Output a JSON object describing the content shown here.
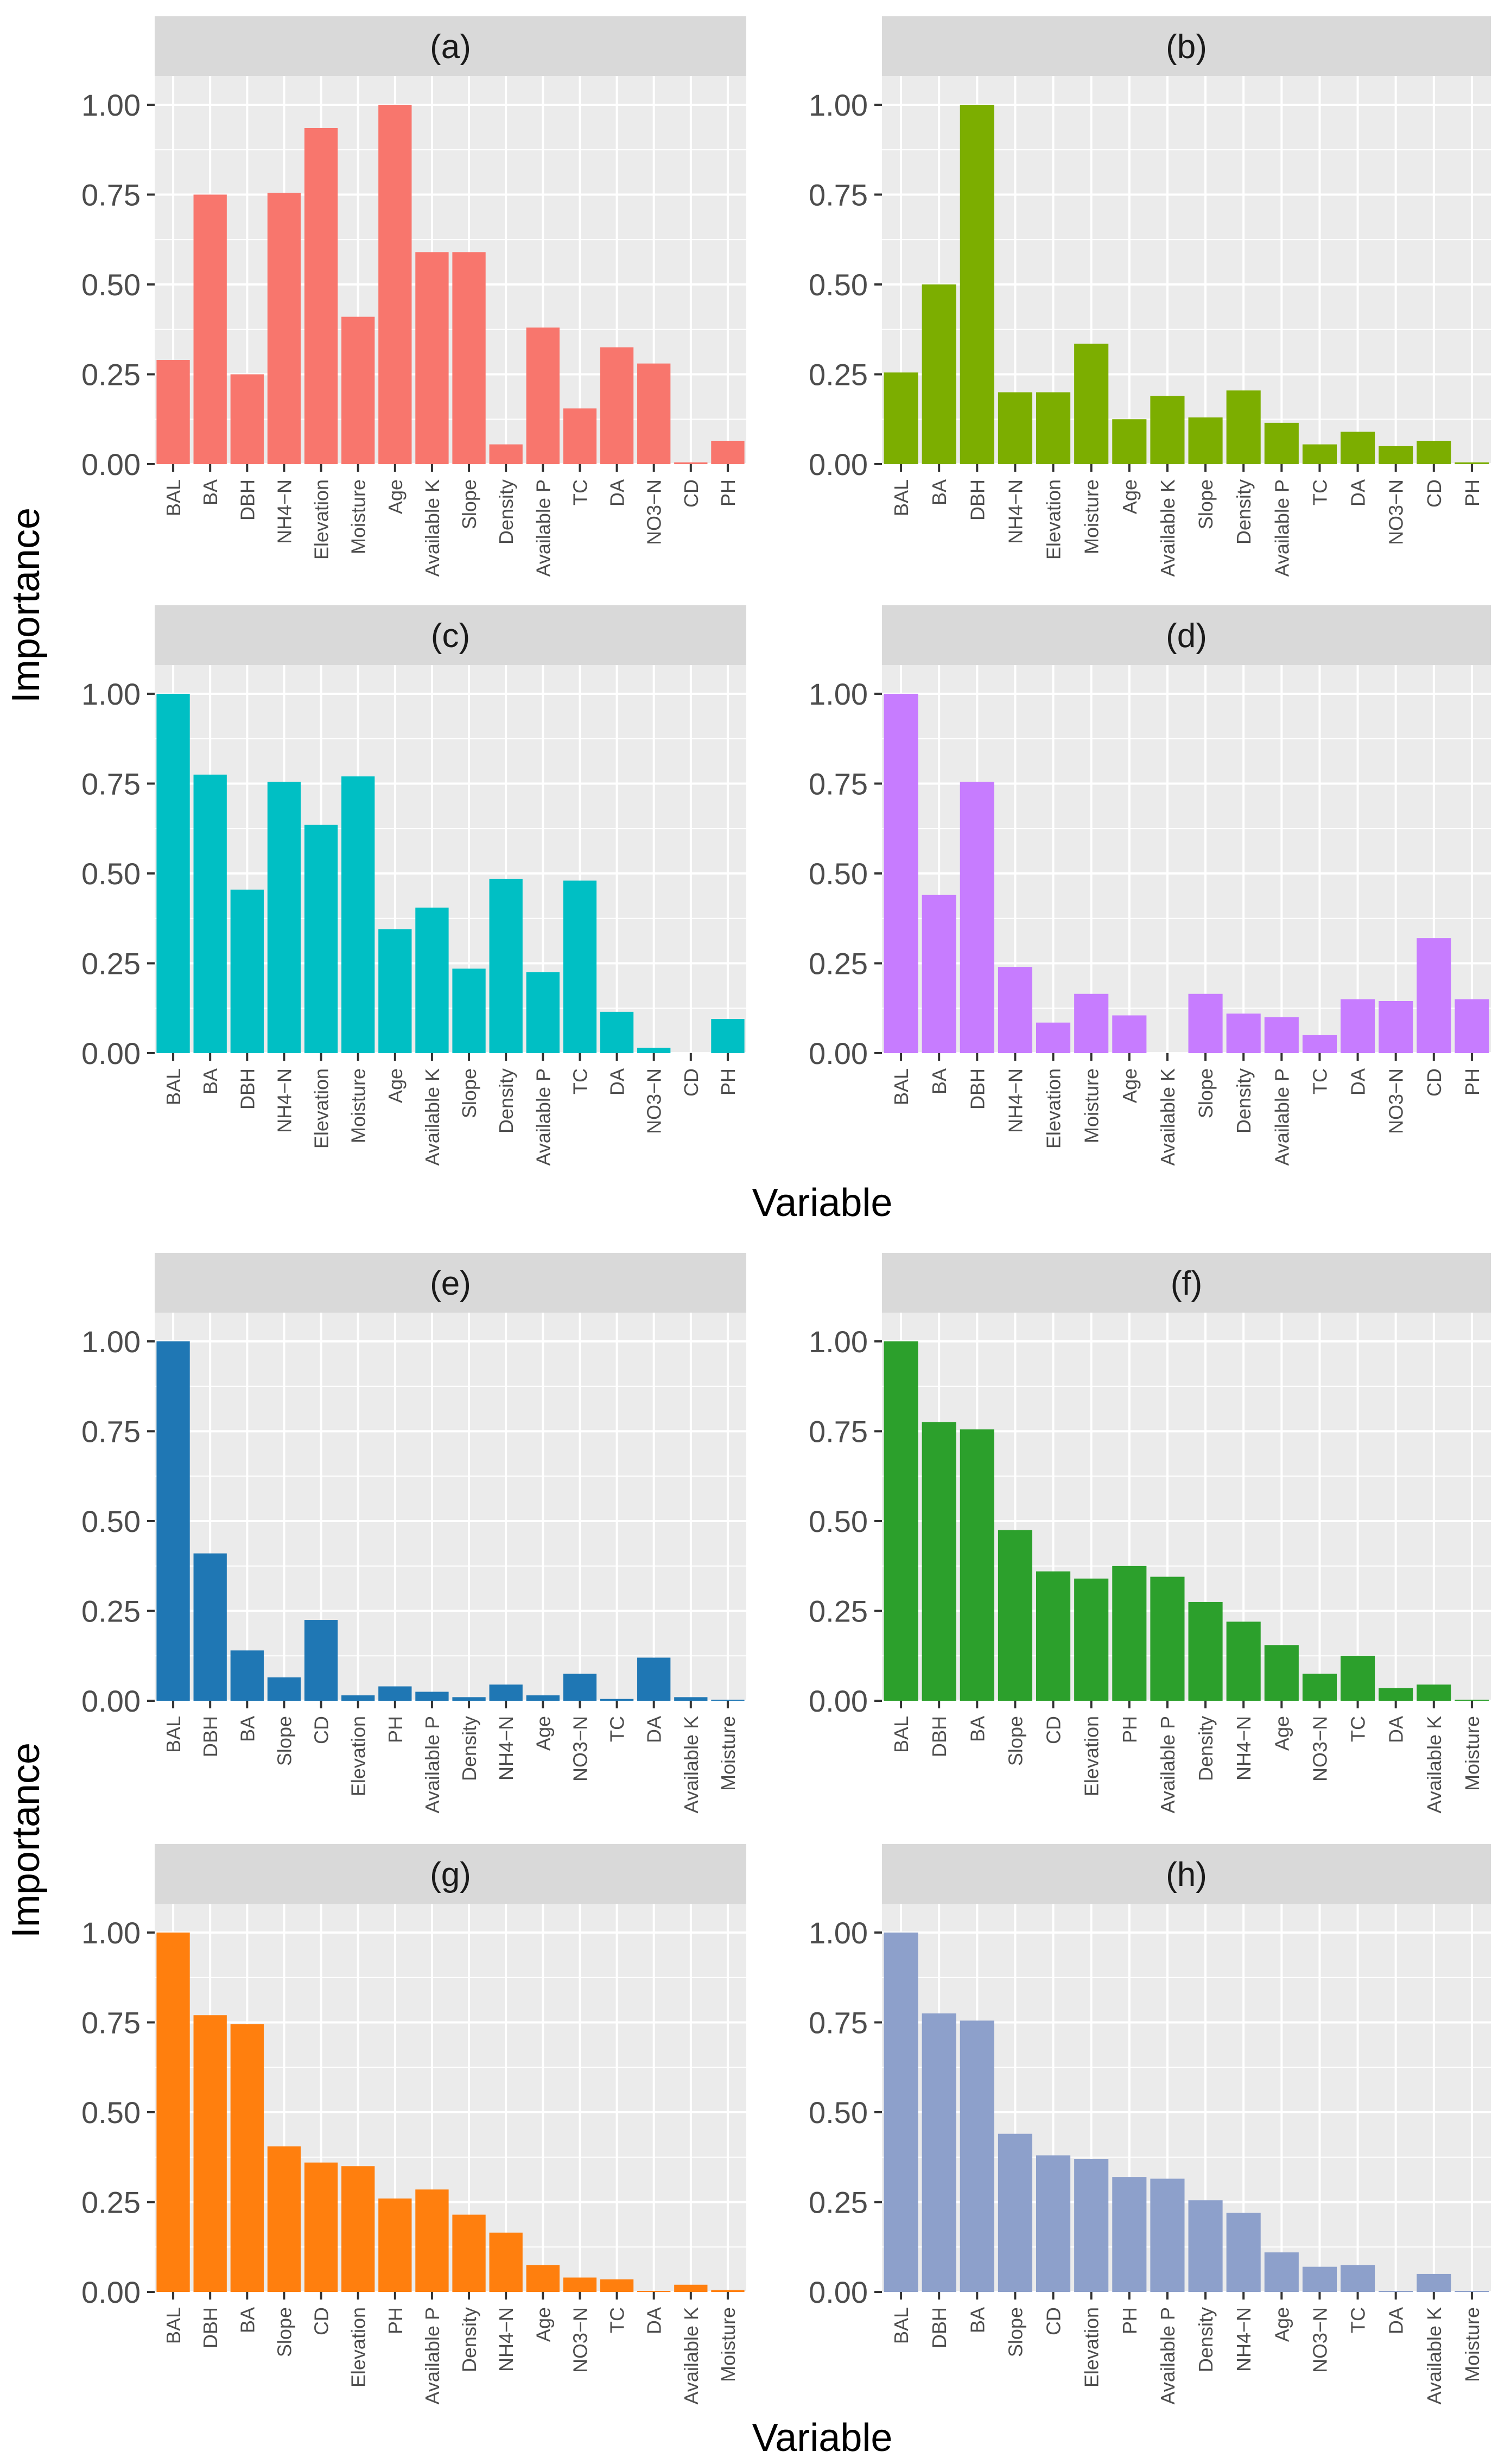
{
  "colors": {
    "panel_bg": "#EBEBEB",
    "strip_bg": "#D9D9D9",
    "grid": "#FFFFFF",
    "tick_text": "#4D4D4D",
    "label_text": "#000000"
  },
  "axis_titles": {
    "top": {
      "ylabel": "Importance",
      "xlabel": "Variable"
    },
    "bottom": {
      "ylabel": "Importance",
      "xlabel": "Variable"
    }
  },
  "chart_data": [
    {
      "type": "bar",
      "title": "(a)",
      "color": "#F8766D",
      "categories": [
        "BAL",
        "BA",
        "DBH",
        "NH4−N",
        "Elevation",
        "Moisture",
        "Age",
        "Available K",
        "Slope",
        "Density",
        "Available P",
        "TC",
        "DA",
        "NO3−N",
        "CD",
        "PH"
      ],
      "values": [
        0.29,
        0.75,
        0.25,
        0.755,
        0.935,
        0.41,
        1.0,
        0.59,
        0.59,
        0.055,
        0.38,
        0.155,
        0.325,
        0.28,
        0.005,
        0.065
      ],
      "ylim": [
        0,
        1.08
      ],
      "yticks": [
        "0.00",
        "0.25",
        "0.50",
        "0.75",
        "1.00"
      ]
    },
    {
      "type": "bar",
      "title": "(b)",
      "color": "#7CAE00",
      "categories": [
        "BAL",
        "BA",
        "DBH",
        "NH4−N",
        "Elevation",
        "Moisture",
        "Age",
        "Available K",
        "Slope",
        "Density",
        "Available P",
        "TC",
        "DA",
        "NO3−N",
        "CD",
        "PH"
      ],
      "values": [
        0.255,
        0.5,
        1.0,
        0.2,
        0.2,
        0.335,
        0.125,
        0.19,
        0.13,
        0.205,
        0.115,
        0.055,
        0.09,
        0.05,
        0.065,
        0.005
      ],
      "ylim": [
        0,
        1.08
      ],
      "yticks": [
        "0.00",
        "0.25",
        "0.50",
        "0.75",
        "1.00"
      ]
    },
    {
      "type": "bar",
      "title": "(c)",
      "color": "#00BFC4",
      "categories": [
        "BAL",
        "BA",
        "DBH",
        "NH4−N",
        "Elevation",
        "Moisture",
        "Age",
        "Available K",
        "Slope",
        "Density",
        "Available P",
        "TC",
        "DA",
        "NO3−N",
        "CD",
        "PH"
      ],
      "values": [
        1.0,
        0.775,
        0.455,
        0.755,
        0.635,
        0.77,
        0.345,
        0.405,
        0.235,
        0.485,
        0.225,
        0.48,
        0.115,
        0.015,
        0.0,
        0.095
      ],
      "ylim": [
        0,
        1.08
      ],
      "yticks": [
        "0.00",
        "0.25",
        "0.50",
        "0.75",
        "1.00"
      ]
    },
    {
      "type": "bar",
      "title": "(d)",
      "color": "#C77CFF",
      "categories": [
        "BAL",
        "BA",
        "DBH",
        "NH4−N",
        "Elevation",
        "Moisture",
        "Age",
        "Available K",
        "Slope",
        "Density",
        "Available P",
        "TC",
        "DA",
        "NO3−N",
        "CD",
        "PH"
      ],
      "values": [
        1.0,
        0.44,
        0.755,
        0.24,
        0.085,
        0.165,
        0.105,
        0.0,
        0.165,
        0.11,
        0.1,
        0.05,
        0.15,
        0.145,
        0.32,
        0.15
      ],
      "ylim": [
        0,
        1.08
      ],
      "yticks": [
        "0.00",
        "0.25",
        "0.50",
        "0.75",
        "1.00"
      ]
    },
    {
      "type": "bar",
      "title": "(e)",
      "color": "#1F77B4",
      "categories": [
        "BAL",
        "DBH",
        "BA",
        "Slope",
        "CD",
        "Elevation",
        "PH",
        "Available P",
        "Density",
        "NH4−N",
        "Age",
        "NO3−N",
        "TC",
        "DA",
        "Available K",
        "Moisture"
      ],
      "values": [
        1.0,
        0.41,
        0.14,
        0.065,
        0.225,
        0.015,
        0.04,
        0.025,
        0.01,
        0.045,
        0.015,
        0.075,
        0.005,
        0.12,
        0.01,
        0.003
      ],
      "ylim": [
        0,
        1.08
      ],
      "yticks": [
        "0.00",
        "0.25",
        "0.50",
        "0.75",
        "1.00"
      ]
    },
    {
      "type": "bar",
      "title": "(f)",
      "color": "#2CA02C",
      "categories": [
        "BAL",
        "DBH",
        "BA",
        "Slope",
        "CD",
        "Elevation",
        "PH",
        "Available P",
        "Density",
        "NH4−N",
        "Age",
        "NO3−N",
        "TC",
        "DA",
        "Available K",
        "Moisture"
      ],
      "values": [
        1.0,
        0.775,
        0.755,
        0.475,
        0.36,
        0.34,
        0.375,
        0.345,
        0.275,
        0.22,
        0.155,
        0.075,
        0.125,
        0.035,
        0.045,
        0.003
      ],
      "ylim": [
        0,
        1.08
      ],
      "yticks": [
        "0.00",
        "0.25",
        "0.50",
        "0.75",
        "1.00"
      ]
    },
    {
      "type": "bar",
      "title": "(g)",
      "color": "#FF7F0E",
      "categories": [
        "BAL",
        "DBH",
        "BA",
        "Slope",
        "CD",
        "Elevation",
        "PH",
        "Available P",
        "Density",
        "NH4−N",
        "Age",
        "NO3−N",
        "TC",
        "DA",
        "Available K",
        "Moisture"
      ],
      "values": [
        1.0,
        0.77,
        0.745,
        0.405,
        0.36,
        0.35,
        0.26,
        0.285,
        0.215,
        0.165,
        0.075,
        0.04,
        0.035,
        0.003,
        0.02,
        0.005
      ],
      "ylim": [
        0,
        1.08
      ],
      "yticks": [
        "0.00",
        "0.25",
        "0.50",
        "0.75",
        "1.00"
      ]
    },
    {
      "type": "bar",
      "title": "(h)",
      "color": "#8DA0CB",
      "categories": [
        "BAL",
        "DBH",
        "BA",
        "Slope",
        "CD",
        "Elevation",
        "PH",
        "Available P",
        "Density",
        "NH4−N",
        "Age",
        "NO3−N",
        "TC",
        "DA",
        "Available K",
        "Moisture"
      ],
      "values": [
        1.0,
        0.775,
        0.755,
        0.44,
        0.38,
        0.37,
        0.32,
        0.315,
        0.255,
        0.22,
        0.11,
        0.07,
        0.075,
        0.003,
        0.05,
        0.003
      ],
      "ylim": [
        0,
        1.08
      ],
      "yticks": [
        "0.00",
        "0.25",
        "0.50",
        "0.75",
        "1.00"
      ]
    }
  ]
}
